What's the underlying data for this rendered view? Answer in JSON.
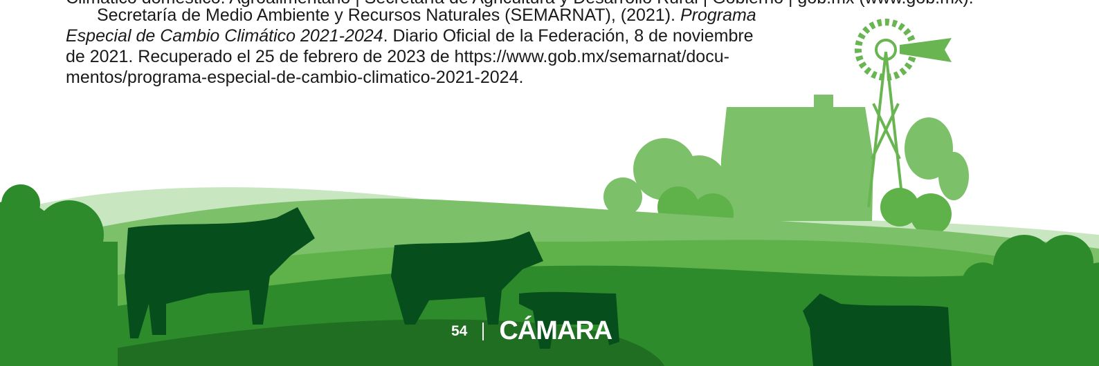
{
  "reference_top": "Climático doméstico. Agroalimentario | Secretaría de Agricultura y Desarrollo Rural | Gobierno | gob.mx (www.gob.mx).",
  "reference": {
    "line_1": {
      "text": "Secretaría de Medio Ambiente y Recursos Naturales (SEMARNAT), (2021).",
      "italic": "Programa"
    },
    "line_2": {
      "italic": "Especial de Cambio Climático 2021-2024",
      "text": ". Diario Oficial de la Federación, 8 de noviembre"
    },
    "line_3": "de 2021. Recuperado el 25 de febrero de 2023 de https://www.gob.mx/semarnat/docu-",
    "line_4": "mentos/programa-especial-de-cambio-climatico-2021-2024."
  },
  "footer": {
    "page_number": "54",
    "brand": "CÁMARA"
  }
}
